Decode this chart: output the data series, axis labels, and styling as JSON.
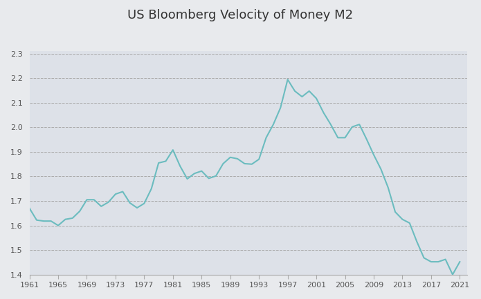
{
  "title": "US Bloomberg Velocity of Money M2",
  "title_fontsize": 13,
  "background_color": "#e8eaed",
  "plot_background_color": "#dde1e8",
  "line_color": "#6bbcbf",
  "line_width": 1.5,
  "xlim": [
    1961,
    2022
  ],
  "ylim": [
    1.4,
    2.31
  ],
  "xticks": [
    1961,
    1965,
    1969,
    1973,
    1977,
    1981,
    1985,
    1989,
    1993,
    1997,
    2001,
    2005,
    2009,
    2013,
    2017,
    2021
  ],
  "yticks": [
    1.4,
    1.5,
    1.6,
    1.7,
    1.8,
    1.9,
    2.0,
    2.1,
    2.2,
    2.3
  ],
  "years": [
    1961,
    1962,
    1963,
    1964,
    1965,
    1966,
    1967,
    1968,
    1969,
    1970,
    1971,
    1972,
    1973,
    1974,
    1975,
    1976,
    1977,
    1978,
    1979,
    1980,
    1981,
    1982,
    1983,
    1984,
    1985,
    1986,
    1987,
    1988,
    1989,
    1990,
    1991,
    1992,
    1993,
    1994,
    1995,
    1996,
    1997,
    1998,
    1999,
    2000,
    2001,
    2002,
    2003,
    2004,
    2005,
    2006,
    2007,
    2008,
    2009,
    2010,
    2011,
    2012,
    2013,
    2014,
    2015,
    2016,
    2017,
    2018,
    2019,
    2020,
    2021
  ],
  "values": [
    1.67,
    1.622,
    1.618,
    1.618,
    1.6,
    1.625,
    1.63,
    1.658,
    1.705,
    1.705,
    1.678,
    1.695,
    1.728,
    1.738,
    1.692,
    1.672,
    1.69,
    1.75,
    1.855,
    1.862,
    1.908,
    1.842,
    1.79,
    1.812,
    1.822,
    1.792,
    1.802,
    1.852,
    1.878,
    1.872,
    1.852,
    1.85,
    1.87,
    1.958,
    2.012,
    2.08,
    2.195,
    2.148,
    2.125,
    2.148,
    2.118,
    2.06,
    2.012,
    1.958,
    1.958,
    2.002,
    2.012,
    1.952,
    1.888,
    1.83,
    1.755,
    1.655,
    1.625,
    1.61,
    1.535,
    1.468,
    1.452,
    1.452,
    1.462,
    1.4,
    1.452
  ]
}
